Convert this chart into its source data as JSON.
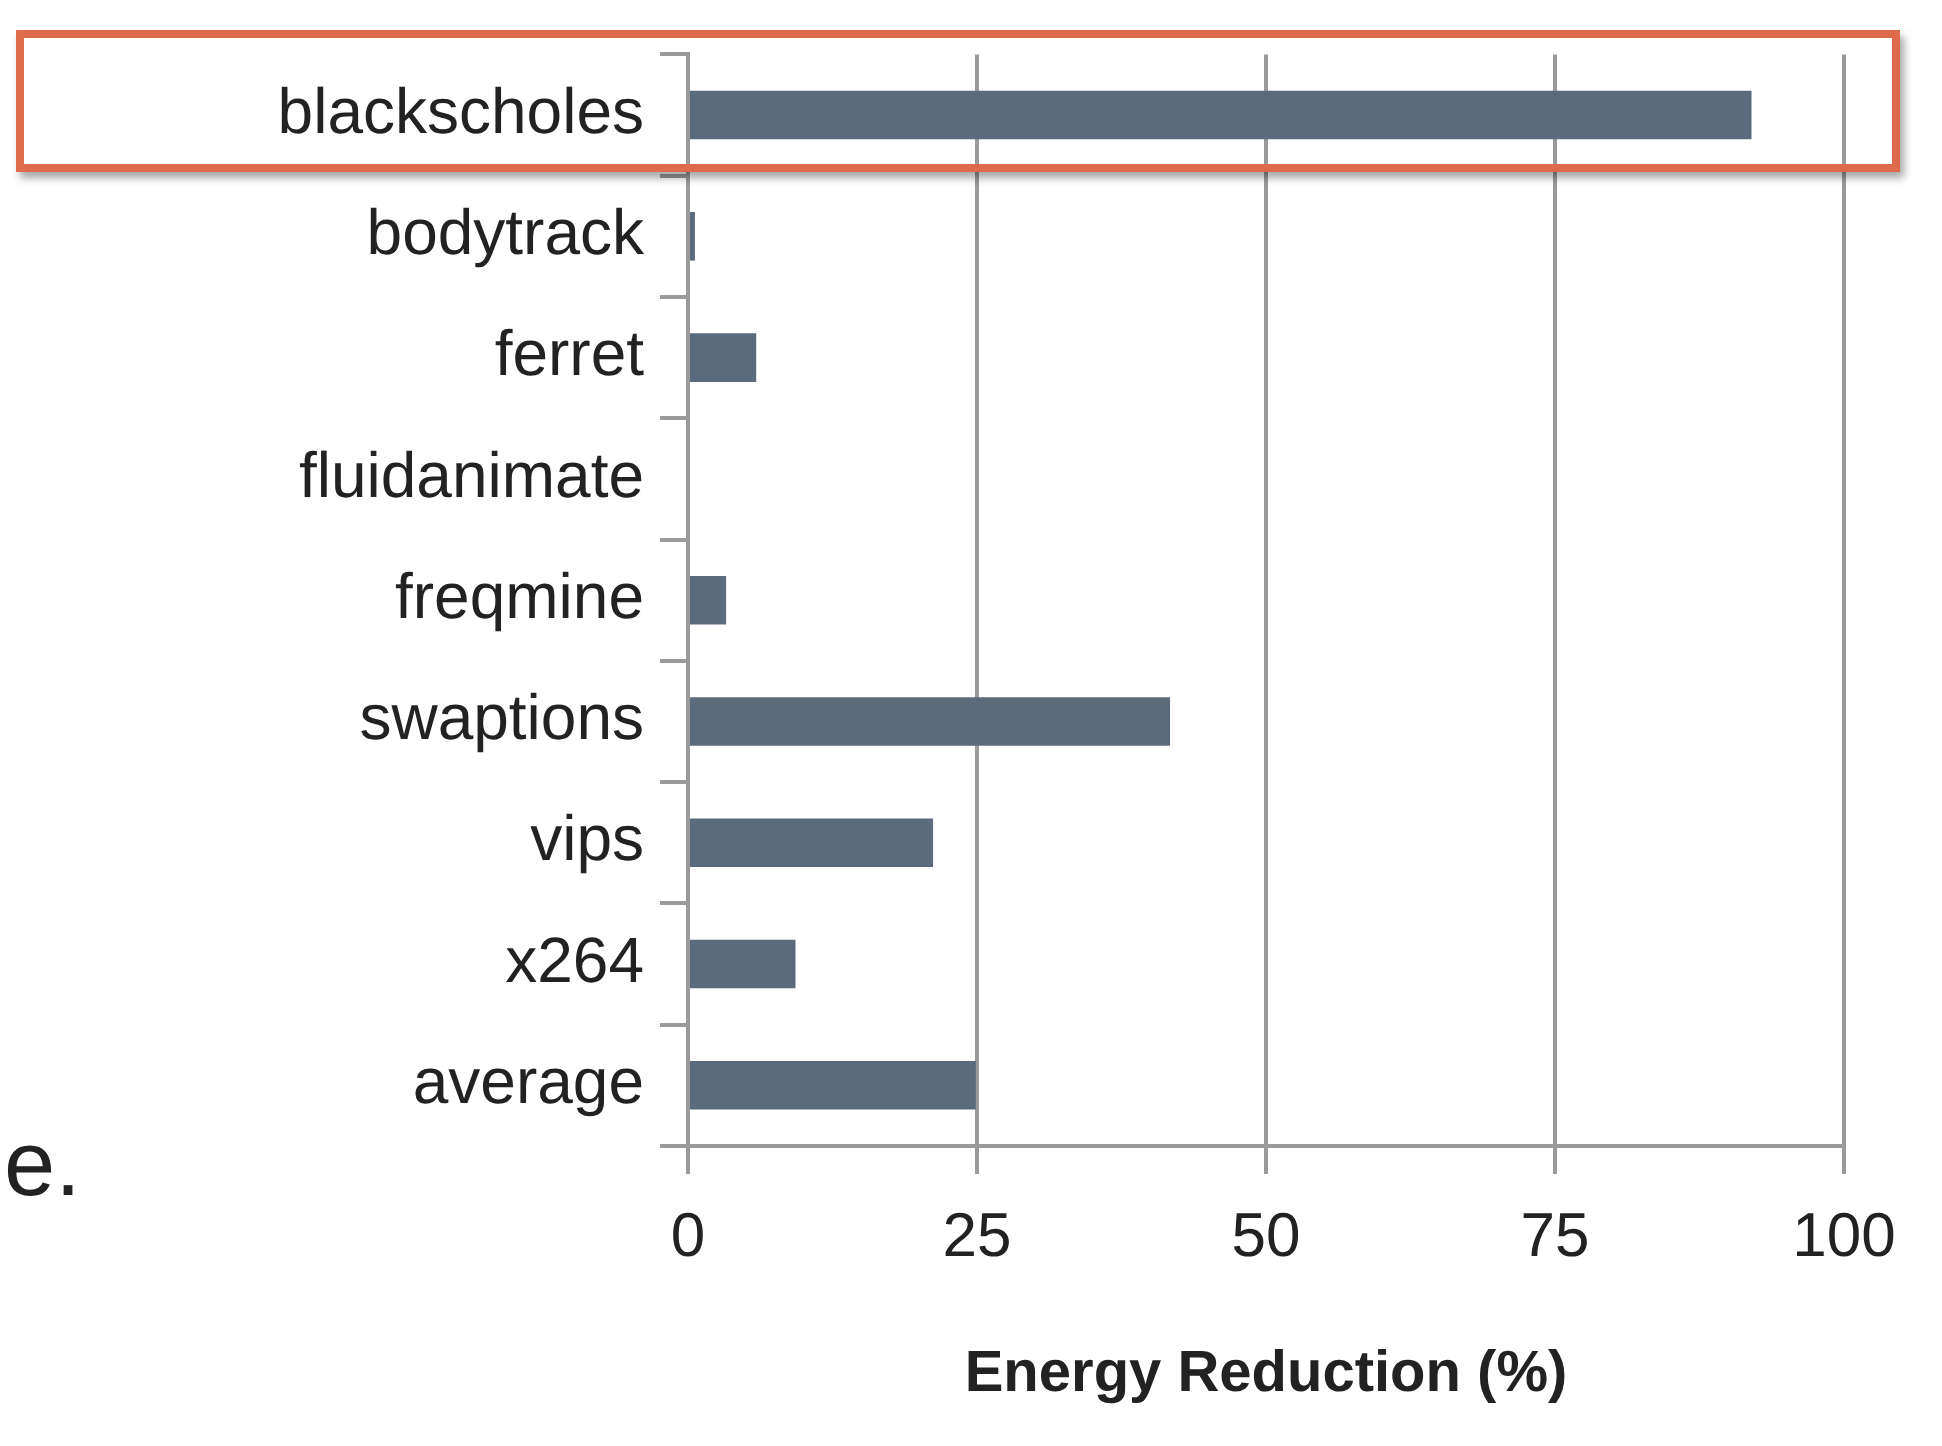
{
  "chart_data": {
    "type": "bar",
    "orientation": "horizontal",
    "xlabel": "Energy Reduction (%)",
    "categories": [
      "blackscholes",
      "bodytrack",
      "ferret",
      "fluidanimate",
      "freqmine",
      "swaptions",
      "vips",
      "x264",
      "average"
    ],
    "values": [
      92,
      0.6,
      5.9,
      0,
      3.3,
      41.7,
      21.2,
      9.3,
      24.9
    ],
    "color": "#5b6b7c",
    "xlim": [
      0,
      100
    ],
    "xticks": [
      0,
      25,
      50,
      75,
      100
    ],
    "grid": "x",
    "legend": false,
    "annotations": [
      "e."
    ]
  }
}
